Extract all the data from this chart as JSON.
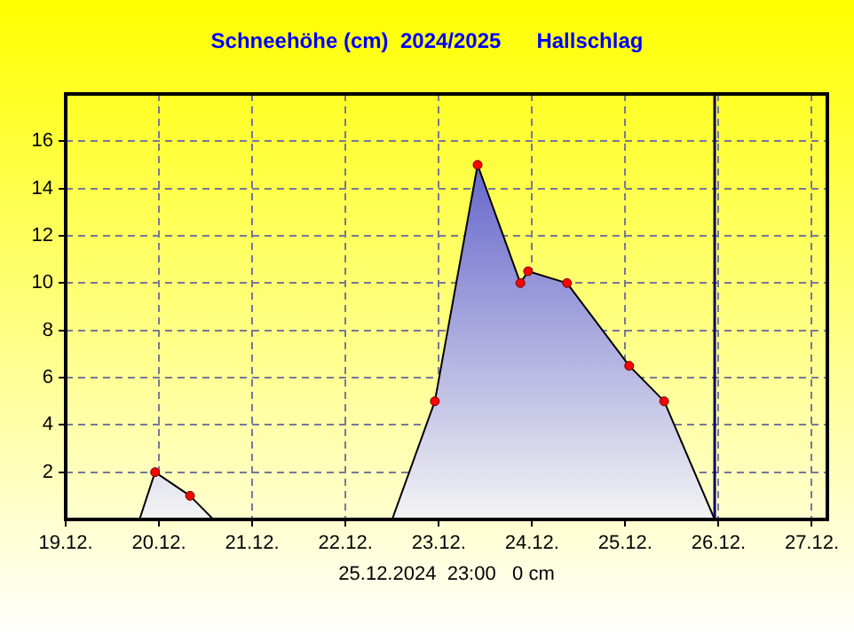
{
  "chart_data": {
    "type": "area",
    "title": "Schneehöhe (cm)  2024/2025      Hallschlag",
    "x": [
      "2024-12-19T19:00",
      "2024-12-19T23:00",
      "2024-12-20T08:00",
      "2024-12-20T14:00",
      "2024-12-22T12:00",
      "2024-12-22T23:00",
      "2024-12-23T10:00",
      "2024-12-23T21:00",
      "2024-12-23T23:00",
      "2024-12-24T09:00",
      "2024-12-25T01:00",
      "2024-12-25T10:00",
      "2024-12-25T23:00"
    ],
    "series": [
      {
        "color": "#6666cc",
        "values": [
          0,
          2,
          1,
          0,
          0,
          5,
          15,
          10,
          10.5,
          10,
          6.5,
          5,
          0
        ]
      }
    ],
    "xlim": [
      "2024-12-19",
      "2024-12-27T04:00"
    ],
    "xticks": [
      {
        "value": "2024-12-19",
        "label": "19.12."
      },
      {
        "value": "2024-12-20",
        "label": "20.12."
      },
      {
        "value": "2024-12-21",
        "label": "21.12."
      },
      {
        "value": "2024-12-22",
        "label": "22.12."
      },
      {
        "value": "2024-12-23",
        "label": "23.12."
      },
      {
        "value": "2024-12-24",
        "label": "24.12."
      },
      {
        "value": "2024-12-25",
        "label": "25.12."
      },
      {
        "value": "2024-12-26",
        "label": "26.12."
      },
      {
        "value": "2024-12-27",
        "label": "27.12."
      }
    ],
    "ylim": [
      0,
      18
    ],
    "yticks": [
      2,
      4,
      6,
      8,
      10,
      12,
      14,
      16
    ],
    "ref_lines": [
      {
        "axis": "x",
        "value": "2024-12-25T23:00",
        "color": "#000066"
      }
    ],
    "annotations": [
      "25.12.2024  23:00   0 cm"
    ],
    "grid": true,
    "legend": false,
    "marker": "circle"
  }
}
